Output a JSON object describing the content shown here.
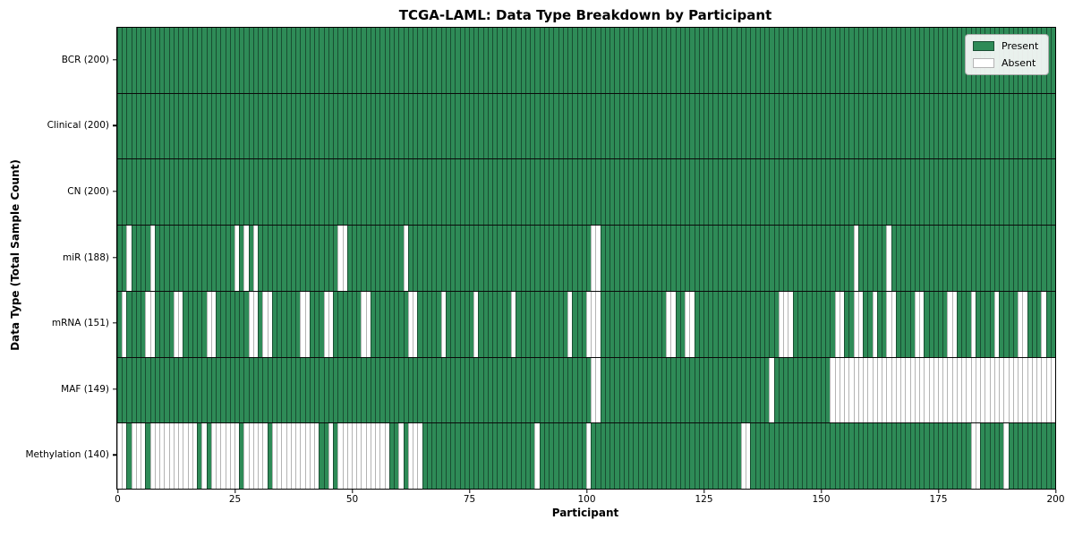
{
  "legend": {
    "present_label": "Present",
    "absent_label": "Absent"
  },
  "colors": {
    "present": "#2e8b57",
    "absent": "#ffffff",
    "frame": "#000000"
  },
  "chart_data": {
    "type": "heatmap",
    "title": "TCGA-LAML: Data Type Breakdown by Participant",
    "xlabel": "Participant",
    "ylabel": "Data Type (Total Sample Count)",
    "x_range": [
      0,
      200
    ],
    "n_participants": 200,
    "x_ticks": [
      0,
      25,
      50,
      75,
      100,
      125,
      150,
      175,
      200
    ],
    "legend_entries": [
      "Present",
      "Absent"
    ],
    "legend_position": "upper right",
    "grid": false,
    "rows": [
      {
        "label": "BCR (200)",
        "data_type": "BCR",
        "total_samples": 200,
        "absent_participants": []
      },
      {
        "label": "Clinical (200)",
        "data_type": "Clinical",
        "total_samples": 200,
        "absent_participants": []
      },
      {
        "label": "CN (200)",
        "data_type": "CN",
        "total_samples": 200,
        "absent_participants": []
      },
      {
        "label": "miR (188)",
        "data_type": "miR",
        "total_samples": 188,
        "absent_participants": [
          2,
          7,
          25,
          27,
          29,
          47,
          48,
          61,
          101,
          102,
          157,
          164
        ]
      },
      {
        "label": "mRNA (151)",
        "data_type": "mRNA",
        "total_samples": 151,
        "absent_participants": [
          1,
          6,
          7,
          12,
          13,
          19,
          20,
          28,
          29,
          31,
          32,
          39,
          40,
          44,
          45,
          52,
          53,
          62,
          63,
          69,
          76,
          84,
          96,
          100,
          101,
          102,
          117,
          118,
          121,
          122,
          141,
          142,
          143,
          153,
          154,
          157,
          158,
          161,
          164,
          165,
          170,
          171,
          177,
          178,
          182,
          187,
          192,
          193,
          197
        ]
      },
      {
        "label": "MAF (149)",
        "data_type": "MAF",
        "total_samples": 149,
        "absent_participants": [
          101,
          102,
          139,
          152,
          153,
          154,
          155,
          156,
          157,
          158,
          159,
          160,
          161,
          162,
          163,
          164,
          165,
          166,
          167,
          168,
          169,
          170,
          171,
          172,
          173,
          174,
          175,
          176,
          177,
          178,
          179,
          180,
          181,
          182,
          183,
          184,
          185,
          186,
          187,
          188,
          189,
          190,
          191,
          192,
          193,
          194,
          195,
          196,
          197,
          198,
          199
        ]
      },
      {
        "label": "Methylation (140)",
        "data_type": "Methylation",
        "total_samples": 140,
        "absent_participants": [
          0,
          1,
          3,
          4,
          5,
          7,
          8,
          9,
          10,
          11,
          12,
          13,
          14,
          15,
          16,
          18,
          20,
          21,
          22,
          23,
          24,
          25,
          27,
          28,
          29,
          30,
          31,
          33,
          34,
          35,
          36,
          37,
          38,
          39,
          40,
          41,
          42,
          45,
          47,
          48,
          49,
          50,
          51,
          52,
          53,
          54,
          55,
          56,
          57,
          60,
          62,
          63,
          64,
          89,
          100,
          133,
          134,
          182,
          183,
          189
        ]
      }
    ]
  }
}
